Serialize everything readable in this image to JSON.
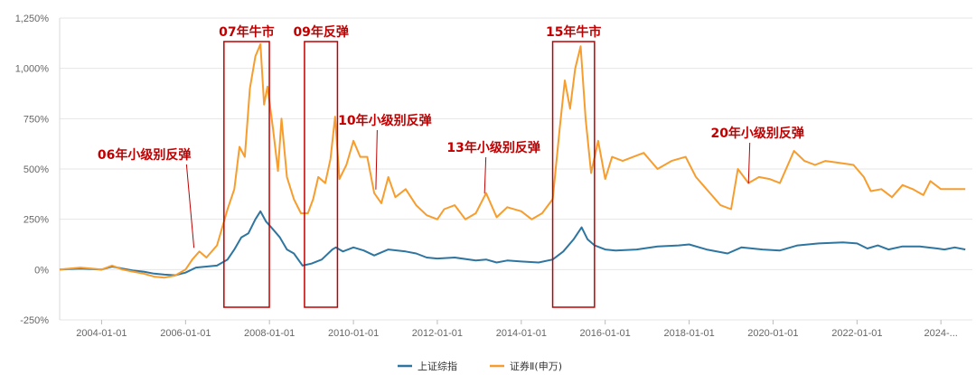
{
  "chart_data": {
    "type": "line",
    "title": "",
    "xlabel": "",
    "ylabel": "",
    "ylim": [
      -250,
      1250
    ],
    "y_unit": "%",
    "grid": "horizontal",
    "legend_position": "bottom-center",
    "y_ticks": [
      "-250%",
      "0%",
      "250%",
      "500%",
      "750%",
      "1,000%",
      "1,250%"
    ],
    "x_ticks": [
      "2004-01-01",
      "2006-01-01",
      "2008-01-01",
      "2010-01-01",
      "2012-01-01",
      "2014-01-01",
      "2016-01-01",
      "2018-01-01",
      "2020-01-01",
      "2022-01-01",
      "2024-..."
    ],
    "colors": {
      "series1": "#2e75a0",
      "series2": "#f79d2e",
      "annotation": "#c00000"
    },
    "series": [
      {
        "name": "上证综指",
        "points": [
          [
            "2003-01-01",
            0
          ],
          [
            "2003-07-01",
            5
          ],
          [
            "2004-01-01",
            0
          ],
          [
            "2004-04-01",
            15
          ],
          [
            "2004-07-01",
            5
          ],
          [
            "2004-10-01",
            -5
          ],
          [
            "2005-01-01",
            -10
          ],
          [
            "2005-04-01",
            -20
          ],
          [
            "2005-07-01",
            -25
          ],
          [
            "2005-10-01",
            -28
          ],
          [
            "2006-01-01",
            -15
          ],
          [
            "2006-04-01",
            10
          ],
          [
            "2006-07-01",
            15
          ],
          [
            "2006-10-01",
            20
          ],
          [
            "2007-01-01",
            50
          ],
          [
            "2007-03-01",
            100
          ],
          [
            "2007-05-01",
            160
          ],
          [
            "2007-07-01",
            180
          ],
          [
            "2007-09-01",
            250
          ],
          [
            "2007-10-15",
            290
          ],
          [
            "2007-12-01",
            240
          ],
          [
            "2008-02-01",
            200
          ],
          [
            "2008-04-01",
            160
          ],
          [
            "2008-06-01",
            100
          ],
          [
            "2008-08-01",
            80
          ],
          [
            "2008-10-15",
            20
          ],
          [
            "2009-01-01",
            30
          ],
          [
            "2009-04-01",
            50
          ],
          [
            "2009-07-01",
            100
          ],
          [
            "2009-08-01",
            110
          ],
          [
            "2009-10-01",
            90
          ],
          [
            "2010-01-01",
            110
          ],
          [
            "2010-04-01",
            95
          ],
          [
            "2010-07-01",
            70
          ],
          [
            "2010-11-01",
            100
          ],
          [
            "2011-04-01",
            90
          ],
          [
            "2011-07-01",
            80
          ],
          [
            "2011-10-01",
            60
          ],
          [
            "2012-01-01",
            55
          ],
          [
            "2012-06-01",
            60
          ],
          [
            "2012-12-01",
            45
          ],
          [
            "2013-03-01",
            50
          ],
          [
            "2013-06-01",
            35
          ],
          [
            "2013-09-01",
            45
          ],
          [
            "2014-01-01",
            40
          ],
          [
            "2014-06-01",
            35
          ],
          [
            "2014-10-01",
            50
          ],
          [
            "2015-01-01",
            90
          ],
          [
            "2015-04-01",
            150
          ],
          [
            "2015-06-10",
            210
          ],
          [
            "2015-08-01",
            150
          ],
          [
            "2015-10-01",
            120
          ],
          [
            "2016-01-01",
            100
          ],
          [
            "2016-04-01",
            95
          ],
          [
            "2016-10-01",
            100
          ],
          [
            "2017-04-01",
            115
          ],
          [
            "2017-10-01",
            120
          ],
          [
            "2018-01-01",
            125
          ],
          [
            "2018-06-01",
            100
          ],
          [
            "2018-12-01",
            80
          ],
          [
            "2019-04-01",
            110
          ],
          [
            "2019-10-01",
            100
          ],
          [
            "2020-03-01",
            95
          ],
          [
            "2020-08-01",
            120
          ],
          [
            "2021-02-01",
            130
          ],
          [
            "2021-09-01",
            135
          ],
          [
            "2022-01-01",
            130
          ],
          [
            "2022-04-01",
            105
          ],
          [
            "2022-07-01",
            120
          ],
          [
            "2022-10-01",
            100
          ],
          [
            "2023-02-01",
            115
          ],
          [
            "2023-07-01",
            115
          ],
          [
            "2023-12-01",
            105
          ],
          [
            "2024-02-01",
            100
          ],
          [
            "2024-05-01",
            110
          ],
          [
            "2024-08-01",
            100
          ]
        ]
      },
      {
        "name": "证券Ⅱ(申万)",
        "points": [
          [
            "2003-01-01",
            0
          ],
          [
            "2003-07-01",
            10
          ],
          [
            "2004-01-01",
            0
          ],
          [
            "2004-04-01",
            20
          ],
          [
            "2004-07-01",
            0
          ],
          [
            "2004-10-01",
            -10
          ],
          [
            "2005-01-01",
            -20
          ],
          [
            "2005-04-01",
            -35
          ],
          [
            "2005-07-01",
            -40
          ],
          [
            "2005-10-01",
            -30
          ],
          [
            "2006-01-01",
            0
          ],
          [
            "2006-03-01",
            50
          ],
          [
            "2006-05-01",
            90
          ],
          [
            "2006-07-01",
            60
          ],
          [
            "2006-10-01",
            120
          ],
          [
            "2007-01-01",
            300
          ],
          [
            "2007-03-01",
            400
          ],
          [
            "2007-04-15",
            610
          ],
          [
            "2007-06-01",
            560
          ],
          [
            "2007-07-15",
            900
          ],
          [
            "2007-09-01",
            1060
          ],
          [
            "2007-10-15",
            1120
          ],
          [
            "2007-11-15",
            820
          ],
          [
            "2007-12-15",
            910
          ],
          [
            "2008-02-01",
            700
          ],
          [
            "2008-03-15",
            490
          ],
          [
            "2008-04-15",
            750
          ],
          [
            "2008-06-01",
            460
          ],
          [
            "2008-08-01",
            350
          ],
          [
            "2008-10-01",
            280
          ],
          [
            "2008-12-01",
            280
          ],
          [
            "2009-01-15",
            350
          ],
          [
            "2009-03-01",
            460
          ],
          [
            "2009-05-01",
            430
          ],
          [
            "2009-06-15",
            550
          ],
          [
            "2009-07-25",
            760
          ],
          [
            "2009-09-01",
            450
          ],
          [
            "2009-11-01",
            520
          ],
          [
            "2010-01-01",
            640
          ],
          [
            "2010-03-01",
            560
          ],
          [
            "2010-05-01",
            560
          ],
          [
            "2010-07-01",
            380
          ],
          [
            "2010-09-01",
            330
          ],
          [
            "2010-11-01",
            460
          ],
          [
            "2011-01-01",
            360
          ],
          [
            "2011-04-01",
            400
          ],
          [
            "2011-07-01",
            320
          ],
          [
            "2011-10-01",
            270
          ],
          [
            "2012-01-01",
            250
          ],
          [
            "2012-03-01",
            300
          ],
          [
            "2012-06-01",
            320
          ],
          [
            "2012-09-01",
            250
          ],
          [
            "2012-12-01",
            280
          ],
          [
            "2013-03-01",
            380
          ],
          [
            "2013-06-01",
            260
          ],
          [
            "2013-09-01",
            310
          ],
          [
            "2014-01-01",
            290
          ],
          [
            "2014-04-01",
            250
          ],
          [
            "2014-07-01",
            280
          ],
          [
            "2014-10-01",
            350
          ],
          [
            "2014-12-01",
            700
          ],
          [
            "2015-01-15",
            940
          ],
          [
            "2015-03-01",
            800
          ],
          [
            "2015-04-15",
            1000
          ],
          [
            "2015-06-01",
            1110
          ],
          [
            "2015-07-15",
            750
          ],
          [
            "2015-09-01",
            480
          ],
          [
            "2015-11-01",
            640
          ],
          [
            "2016-01-01",
            450
          ],
          [
            "2016-03-01",
            560
          ],
          [
            "2016-06-01",
            540
          ],
          [
            "2016-09-01",
            560
          ],
          [
            "2016-12-01",
            580
          ],
          [
            "2017-04-01",
            500
          ],
          [
            "2017-08-01",
            540
          ],
          [
            "2017-12-01",
            560
          ],
          [
            "2018-03-01",
            460
          ],
          [
            "2018-06-01",
            400
          ],
          [
            "2018-10-01",
            320
          ],
          [
            "2019-01-01",
            300
          ],
          [
            "2019-03-01",
            500
          ],
          [
            "2019-06-01",
            430
          ],
          [
            "2019-09-01",
            460
          ],
          [
            "2019-12-01",
            450
          ],
          [
            "2020-03-01",
            430
          ],
          [
            "2020-07-01",
            590
          ],
          [
            "2020-10-01",
            540
          ],
          [
            "2021-01-01",
            520
          ],
          [
            "2021-04-01",
            540
          ],
          [
            "2021-08-01",
            530
          ],
          [
            "2021-12-01",
            520
          ],
          [
            "2022-03-01",
            460
          ],
          [
            "2022-05-01",
            390
          ],
          [
            "2022-08-01",
            400
          ],
          [
            "2022-11-01",
            360
          ],
          [
            "2023-02-01",
            420
          ],
          [
            "2023-05-01",
            400
          ],
          [
            "2023-08-01",
            370
          ],
          [
            "2023-10-01",
            440
          ],
          [
            "2024-01-01",
            400
          ],
          [
            "2024-04-01",
            400
          ],
          [
            "2024-08-01",
            400
          ]
        ]
      }
    ],
    "highlight_boxes": [
      {
        "label": "07年牛市",
        "from": "2006-12-01",
        "to": "2007-12-31"
      },
      {
        "label": "09年反弹",
        "from": "2008-11-01",
        "to": "2009-08-15"
      },
      {
        "label": "15年牛市",
        "from": "2014-10-01",
        "to": "2015-09-30"
      }
    ],
    "annotations": [
      {
        "label": "06年小级别反弹",
        "date": "2006-03-15",
        "value": 90
      },
      {
        "label": "10年小级别反弹",
        "date": "2010-07-15",
        "value": 380
      },
      {
        "label": "13年小级别反弹",
        "date": "2013-02-15",
        "value": 360
      },
      {
        "label": "20年小级别反弹",
        "date": "2019-06-01",
        "value": 410
      }
    ]
  }
}
